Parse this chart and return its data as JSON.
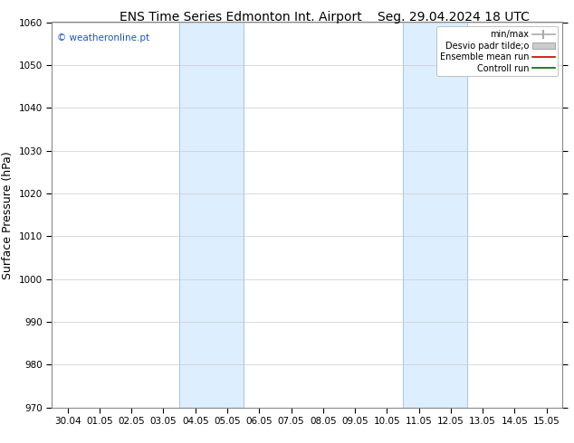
{
  "title_left": "ENS Time Series Edmonton Int. Airport",
  "title_right": "Seg. 29.04.2024 18 UTC",
  "ylabel": "Surface Pressure (hPa)",
  "xlabel_ticks": [
    "30.04",
    "01.05",
    "02.05",
    "03.05",
    "04.05",
    "05.05",
    "06.05",
    "07.05",
    "08.05",
    "09.05",
    "10.05",
    "11.05",
    "12.05",
    "13.05",
    "14.05",
    "15.05"
  ],
  "ylim": [
    970,
    1060
  ],
  "yticks": [
    970,
    980,
    990,
    1000,
    1010,
    1020,
    1030,
    1040,
    1050,
    1060
  ],
  "shaded_regions": [
    {
      "xstart": 4,
      "xend": 6
    },
    {
      "xstart": 11,
      "xend": 13
    }
  ],
  "shaded_color": "#ddeeff",
  "shaded_edge_color": "#aaccdd",
  "watermark": "© weatheronline.pt",
  "watermark_color": "#1a56c4",
  "grid_color": "#cccccc",
  "background_color": "#ffffff",
  "title_fontsize": 10,
  "tick_fontsize": 7.5,
  "ylabel_fontsize": 9,
  "legend_label_min_max": "min/max",
  "legend_label_desvio": "Desvio padr tilde;o",
  "legend_label_ensemble": "Ensemble mean run",
  "legend_label_control": "Controll run",
  "legend_color_min_max": "#aaaaaa",
  "legend_color_desvio": "#cccccc",
  "legend_color_ensemble": "#cc0000",
  "legend_color_control": "#006600"
}
